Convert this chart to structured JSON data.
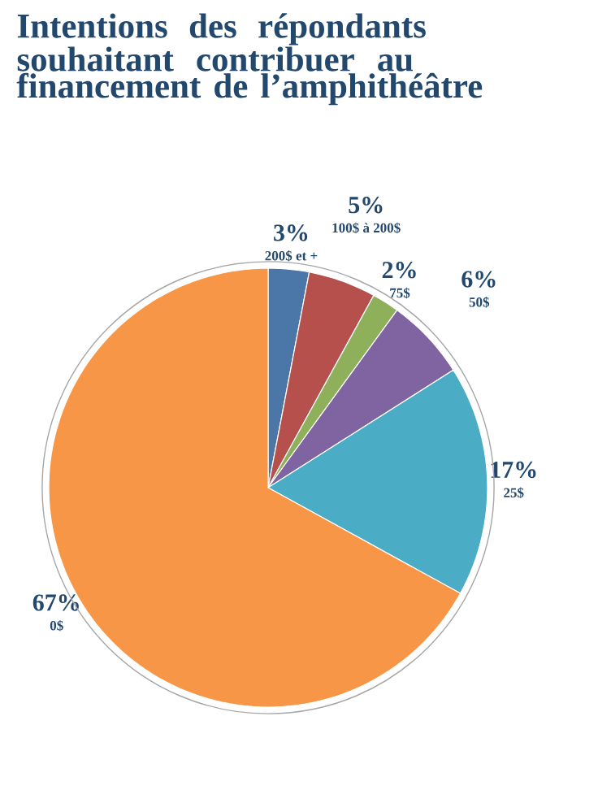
{
  "chart_data": {
    "type": "pie",
    "title": "Intentions des répondants souhaitant contribuer au financement de l’amphithéâtre",
    "categories": [
      "200$ et +",
      "100$ à 200$",
      "75$",
      "50$",
      "25$",
      "0$"
    ],
    "values": [
      3,
      5,
      2,
      6,
      17,
      67
    ],
    "value_labels": [
      "3%",
      "5%",
      "2%",
      "6%",
      "17%",
      "67%"
    ],
    "colors": [
      "#4a76a8",
      "#b5504d",
      "#8fb05a",
      "#8064a2",
      "#4aacc5",
      "#f79646"
    ]
  }
}
